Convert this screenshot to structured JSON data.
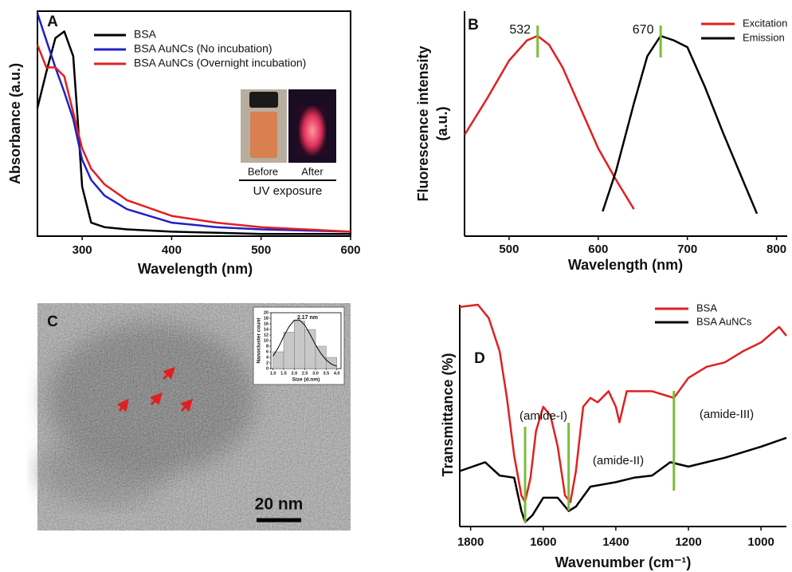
{
  "chart_data": [
    {
      "type": "line",
      "panel": "A",
      "xlabel": "Wavelength (nm)",
      "ylabel": "Absorbance (a.u.)",
      "xlim": [
        250,
        600
      ],
      "xticks": [
        300,
        400,
        500,
        600
      ],
      "ylim": [
        0,
        1
      ],
      "legend": "upper right",
      "x": [
        250,
        260,
        270,
        280,
        290,
        295,
        300,
        310,
        325,
        350,
        400,
        450,
        500,
        600
      ],
      "series": [
        {
          "name": "BSA",
          "color": "#000000",
          "values": [
            0.57,
            0.73,
            0.88,
            0.91,
            0.8,
            0.52,
            0.22,
            0.06,
            0.04,
            0.03,
            0.02,
            0.015,
            0.01,
            0.01
          ]
        },
        {
          "name": "BSA AuNCs (No incubation)",
          "color": "#2020c8",
          "values": [
            0.99,
            0.87,
            0.75,
            0.64,
            0.52,
            0.43,
            0.34,
            0.25,
            0.18,
            0.12,
            0.06,
            0.04,
            0.03,
            0.02
          ]
        },
        {
          "name": "BSA AuNCs (Overnight incubation)",
          "color": "#e02020",
          "values": [
            0.85,
            0.75,
            0.75,
            0.71,
            0.55,
            0.47,
            0.39,
            0.3,
            0.23,
            0.16,
            0.09,
            0.06,
            0.04,
            0.02
          ]
        }
      ],
      "inset": {
        "before": "Before",
        "after": "After",
        "caption": "UV exposure"
      }
    },
    {
      "type": "line",
      "panel": "B",
      "xlabel": "Wavelength (nm)",
      "ylabel": [
        "Fluorescence intensity",
        "(a.u.)"
      ],
      "xlim": [
        450,
        812
      ],
      "xticks": [
        500,
        600,
        700,
        800
      ],
      "ylim": [
        0,
        1
      ],
      "legend": "upper right",
      "series": [
        {
          "name": "Excitation",
          "color": "#e02020",
          "x": [
            450,
            475,
            500,
            520,
            532,
            545,
            560,
            580,
            600,
            620,
            640
          ],
          "values": [
            0.45,
            0.61,
            0.78,
            0.87,
            0.89,
            0.85,
            0.75,
            0.57,
            0.39,
            0.25,
            0.12
          ]
        },
        {
          "name": "Emission",
          "color": "#000000",
          "x": [
            605,
            620,
            640,
            655,
            670,
            685,
            700,
            720,
            740,
            760,
            778
          ],
          "values": [
            0.11,
            0.29,
            0.59,
            0.8,
            0.89,
            0.87,
            0.84,
            0.66,
            0.46,
            0.27,
            0.1
          ]
        }
      ],
      "peaks": [
        532,
        670
      ]
    },
    {
      "type": "histogram",
      "panel": "C",
      "scale_bar": "20 nm",
      "annotation": "2.17 nm",
      "xlabel": "Size (d.nm)",
      "ylabel": "Nanocluster count",
      "bins": [
        1.0,
        1.5,
        2.0,
        2.5,
        3.0,
        3.5,
        4.0
      ],
      "values": [
        6,
        13,
        17,
        14,
        8,
        4
      ],
      "xlim": [
        0.9,
        4.2
      ],
      "ylim": [
        0,
        20
      ],
      "xticks": [
        {
          "value": 1,
          "label": "1.0"
        },
        1.5,
        {
          "value": 2,
          "label": "2.0"
        },
        2.5,
        {
          "value": 3,
          "label": "3.0"
        },
        3.5,
        {
          "value": 4,
          "label": "4.0"
        }
      ],
      "yticks": [
        0,
        2,
        4,
        6,
        8,
        10,
        12,
        14,
        16,
        18,
        20
      ],
      "fit": {
        "x": [
          1.0,
          1.25,
          1.5,
          1.75,
          2.0,
          2.25,
          2.5,
          2.75,
          3.0,
          3.25,
          3.5,
          3.75,
          4.0
        ],
        "values": [
          4.5,
          7.5,
          11.5,
          15,
          17.3,
          17.4,
          15.5,
          12.2,
          8.5,
          5.4,
          3.1,
          1.6,
          0.8
        ]
      }
    },
    {
      "type": "line",
      "panel": "D",
      "xlabel": "Wavenumber (cm⁻¹)",
      "ylabel": "Transmittance (%)",
      "xlim": [
        1830,
        930
      ],
      "xticks": [
        1800,
        1600,
        1400,
        1200,
        1000
      ],
      "ylim": [
        0,
        1
      ],
      "legend": "upper right",
      "series": [
        {
          "name": "BSA",
          "color": "#e02020",
          "x": [
            1830,
            1780,
            1750,
            1720,
            1700,
            1680,
            1660,
            1650,
            1635,
            1620,
            1600,
            1580,
            1560,
            1540,
            1525,
            1510,
            1490,
            1470,
            1450,
            1420,
            1400,
            1390,
            1370,
            1340,
            1300,
            1260,
            1240,
            1200,
            1150,
            1100,
            1050,
            1000,
            950,
            930
          ],
          "values": [
            0.99,
            1.0,
            0.94,
            0.79,
            0.58,
            0.32,
            0.14,
            0.11,
            0.22,
            0.43,
            0.54,
            0.5,
            0.36,
            0.14,
            0.11,
            0.25,
            0.54,
            0.58,
            0.56,
            0.61,
            0.54,
            0.47,
            0.61,
            0.61,
            0.61,
            0.59,
            0.58,
            0.67,
            0.72,
            0.74,
            0.79,
            0.83,
            0.9,
            0.86
          ]
        },
        {
          "name": "BSA AuNCs",
          "color": "#000000",
          "x": [
            1830,
            1760,
            1720,
            1680,
            1660,
            1650,
            1630,
            1600,
            1560,
            1530,
            1510,
            1470,
            1400,
            1350,
            1300,
            1250,
            1200,
            1100,
            1000,
            930
          ],
          "values": [
            0.25,
            0.29,
            0.23,
            0.22,
            0.07,
            0.02,
            0.05,
            0.13,
            0.13,
            0.07,
            0.09,
            0.18,
            0.2,
            0.22,
            0.23,
            0.29,
            0.27,
            0.31,
            0.36,
            0.4
          ]
        }
      ],
      "annotations": [
        {
          "text": "(amide-I)",
          "x": 1650
        },
        {
          "text": "(amide-II)",
          "x": 1530
        },
        {
          "text": "(amide-III)",
          "x": 1240
        }
      ]
    }
  ]
}
